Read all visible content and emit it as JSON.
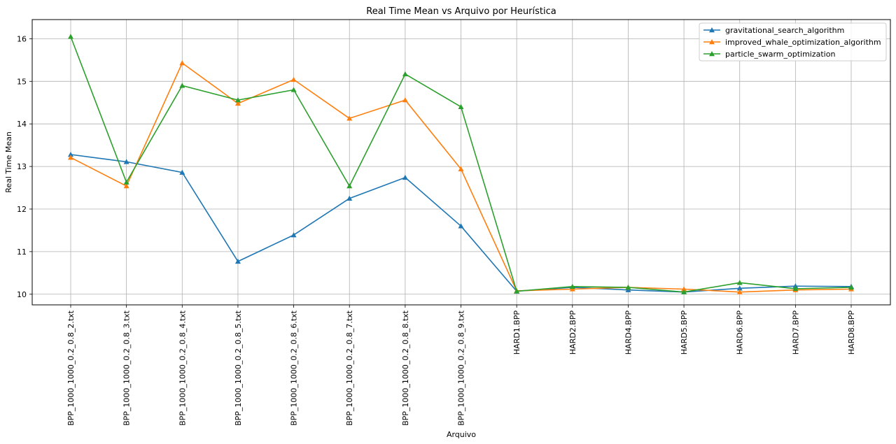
{
  "chart_data": {
    "type": "line",
    "title": "Real Time Mean vs Arquivo por Heurística",
    "xlabel": "Arquivo",
    "ylabel": "Real Time Mean",
    "ylim": [
      9.75,
      16.45
    ],
    "yticks": [
      10,
      11,
      12,
      13,
      14,
      15,
      16
    ],
    "grid": true,
    "legend_position": "top-right",
    "marker": "triangle-up",
    "categories": [
      "BPP_1000_1000_0.2_0.8_2.txt",
      "BPP_1000_1000_0.2_0.8_3.txt",
      "BPP_1000_1000_0.2_0.8_4.txt",
      "BPP_1000_1000_0.2_0.8_5.txt",
      "BPP_1000_1000_0.2_0.8_6.txt",
      "BPP_1000_1000_0.2_0.8_7.txt",
      "BPP_1000_1000_0.2_0.8_8.txt",
      "BPP_1000_1000_0.2_0.8_9.txt",
      "HARD1.BPP",
      "HARD2.BPP",
      "HARD4.BPP",
      "HARD5.BPP",
      "HARD6.BPP",
      "HARD7.BPP",
      "HARD8.BPP"
    ],
    "series": [
      {
        "name": "gravitational_search_algorithm",
        "color": "#1f77b4",
        "values": [
          13.28,
          13.11,
          12.86,
          10.77,
          11.39,
          12.25,
          12.74,
          11.6,
          10.07,
          10.16,
          10.1,
          10.05,
          10.14,
          10.19,
          10.18
        ]
      },
      {
        "name": "improved_whale_optimization_algorithm",
        "color": "#ff7f0e",
        "values": [
          13.21,
          12.54,
          15.43,
          14.48,
          15.04,
          14.13,
          14.56,
          12.94,
          10.08,
          10.12,
          10.16,
          10.12,
          10.05,
          10.1,
          10.12
        ]
      },
      {
        "name": "particle_swarm_optimization",
        "color": "#2ca02c",
        "values": [
          16.05,
          12.63,
          14.9,
          14.56,
          14.8,
          12.54,
          15.17,
          14.4,
          10.07,
          10.18,
          10.16,
          10.05,
          10.27,
          10.13,
          10.16
        ]
      }
    ]
  }
}
